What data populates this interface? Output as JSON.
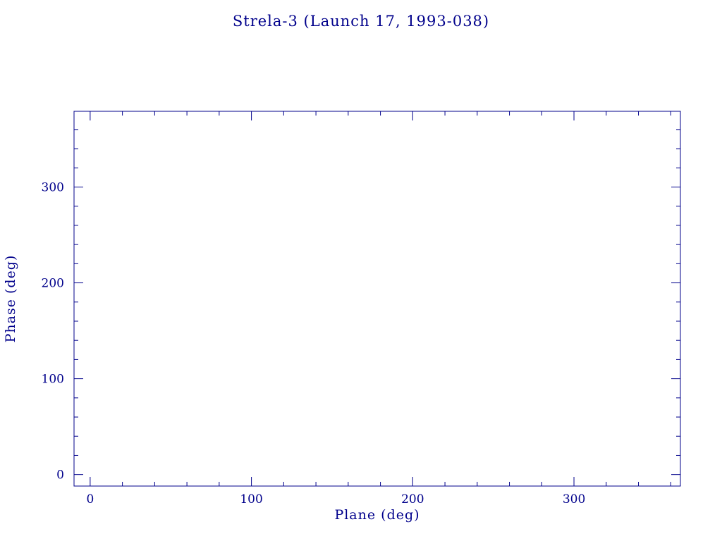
{
  "chart_data": {
    "type": "scatter",
    "title": "Strela-3 (Launch 17, 1993-038)",
    "xlabel": "Plane (deg)",
    "ylabel": "Phase (deg)",
    "xlim": [
      -10,
      366
    ],
    "ylim": [
      -12,
      379
    ],
    "x_ticks": [
      0,
      100,
      200,
      300
    ],
    "y_ticks": [
      0,
      100,
      200,
      300
    ],
    "x_minor_step": 20,
    "y_minor_step": 20,
    "points": [],
    "grid": false,
    "legend": null,
    "accent_color": "#00008B",
    "background_color": "#ffffff"
  }
}
